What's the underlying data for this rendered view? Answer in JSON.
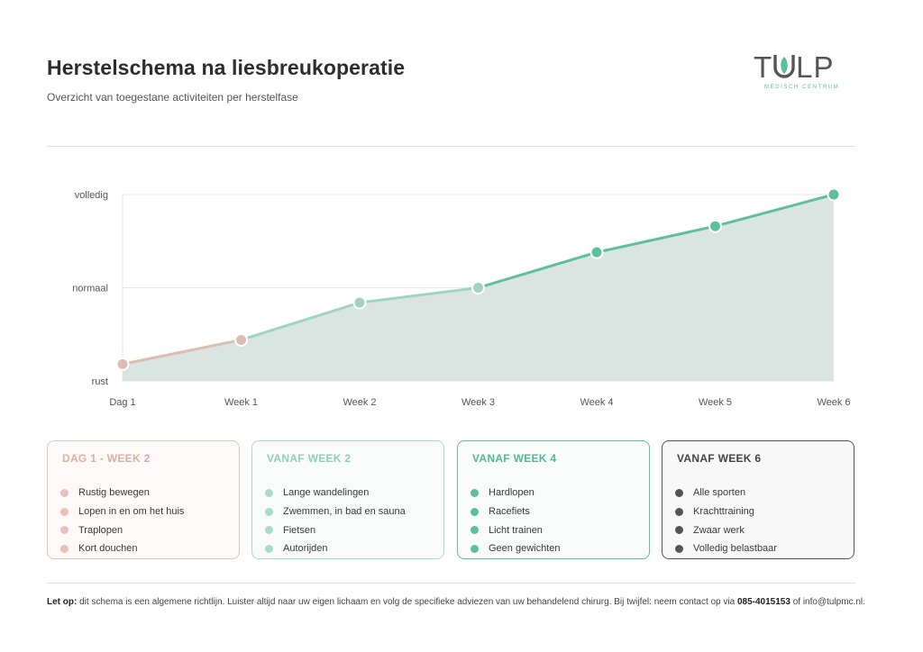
{
  "header": {
    "title": "Herstelschema na liesbreukoperatie",
    "subtitle": "Overzicht van toegestane activiteiten per herstelfase"
  },
  "logo": {
    "name_start": "T",
    "name_end": "LP",
    "tagline": "MEDISCH CENTRUM",
    "color": "#5cbf9b"
  },
  "chart_data": {
    "type": "line",
    "categories": [
      "Dag 1",
      "Week 1",
      "Week 2",
      "Week 3",
      "Week 4",
      "Week 5",
      "Week 6"
    ],
    "y_ticks": [
      {
        "label": "rust",
        "value": 0
      },
      {
        "label": "normaal",
        "value": 50
      },
      {
        "label": "volledig",
        "value": 100
      }
    ],
    "ylim": [
      0,
      100
    ],
    "values": [
      9,
      22,
      42,
      50,
      69,
      83,
      100
    ],
    "point_colors": [
      "#ddbcb5",
      "#ddbcb5",
      "#9fd4c2",
      "#9fd4c2",
      "#5ebf9c",
      "#5ebf9c",
      "#5ebf9c"
    ],
    "fill_color": "#dae5e1",
    "grid": true,
    "title": "",
    "xlabel": "",
    "ylabel": ""
  },
  "phases": [
    {
      "title": "DAG 1 - WEEK 2",
      "color": "#e8c2ba",
      "text_color": "#e0ada2",
      "bg": "#fcf9f8",
      "items": [
        "Rustig bewegen",
        "Lopen in en om het huis",
        "Traplopen",
        "Kort douchen"
      ]
    },
    {
      "title": "VANAF WEEK 2",
      "color": "#a7dcca",
      "text_color": "#8fcfb8",
      "bg": "#f8fbfa",
      "items": [
        "Lange wandelingen",
        "Zwemmen, in bad en sauna",
        "Fietsen",
        "Autorijden"
      ]
    },
    {
      "title": "VANAF WEEK 4",
      "color": "#5ebf9c",
      "text_color": "#55b893",
      "bg": "#f8fbfa",
      "items": [
        "Hardlopen",
        "Racefiets",
        "Licht trainen",
        "Geen gewichten"
      ]
    },
    {
      "title": "VANAF WEEK 6",
      "color": "#555555",
      "text_color": "#444444",
      "bg": "#f8f8f8",
      "items": [
        "Alle sporten",
        "Krachttraining",
        "Zwaar werk",
        "Volledig belastbaar"
      ]
    }
  ],
  "footer": {
    "label": "Let op:",
    "text": "dit schema is een algemene richtlijn. Luister altijd naar uw eigen lichaam en volg de specifieke adviezen van uw behandelend chirurg. Bij twijfel: neem contact op via",
    "phone": "085-4015153",
    "connector": "of",
    "email": "info@tulpmc.nl."
  }
}
